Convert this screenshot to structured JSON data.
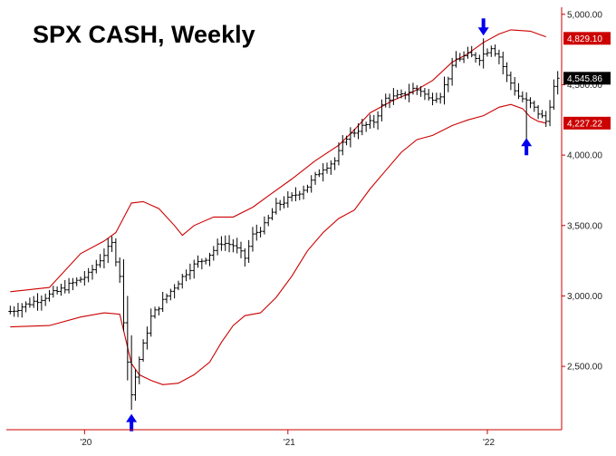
{
  "chart_data": {
    "type": "ohlc",
    "title": "SPX CASH, Weekly",
    "x_tick_labels": [
      "'20",
      "'21",
      "'22"
    ],
    "y_tick_labels": [
      "5,000.00",
      "4,500.00",
      "4,000.00",
      "3,500.00",
      "3,000.00",
      "2,500.00"
    ],
    "y_tick_values": [
      5000,
      4500,
      4000,
      3500,
      3000,
      2500
    ],
    "ylim": [
      2050,
      5050
    ],
    "tags": [
      {
        "label": "4,829.10",
        "value": 4829.1,
        "color": "#cc0000",
        "text_color": "#ffffff"
      },
      {
        "label": "4,545.86",
        "value": 4545.86,
        "color": "#000000",
        "text_color": "#ffffff"
      },
      {
        "label": "4,227.22",
        "value": 4227.22,
        "color": "#cc0000",
        "text_color": "#ffffff"
      }
    ],
    "colors": {
      "bars": "#000000",
      "bands": "#cc0000",
      "arrows": "#0000ee",
      "frame": "#cc0000"
    },
    "bar_anchors": {
      "start_week": 0,
      "end_week": 140,
      "points": [
        [
          0,
          2890
        ],
        [
          12,
          3030
        ],
        [
          20,
          3150
        ],
        [
          26,
          3370
        ],
        [
          28,
          3150
        ],
        [
          29,
          2800
        ],
        [
          31,
          2300
        ],
        [
          33,
          2550
        ],
        [
          36,
          2850
        ],
        [
          40,
          3000
        ],
        [
          46,
          3200
        ],
        [
          50,
          3270
        ],
        [
          54,
          3380
        ],
        [
          57,
          3360
        ],
        [
          60,
          3270
        ],
        [
          62,
          3430
        ],
        [
          65,
          3500
        ],
        [
          68,
          3640
        ],
        [
          72,
          3700
        ],
        [
          76,
          3780
        ],
        [
          80,
          3910
        ],
        [
          83,
          3960
        ],
        [
          86,
          4130
        ],
        [
          90,
          4200
        ],
        [
          93,
          4240
        ],
        [
          96,
          4400
        ],
        [
          100,
          4420
        ],
        [
          103,
          4470
        ],
        [
          105,
          4460
        ],
        [
          107,
          4400
        ],
        [
          110,
          4430
        ],
        [
          114,
          4680
        ],
        [
          117,
          4710
        ],
        [
          120,
          4690
        ],
        [
          123,
          4770
        ],
        [
          125,
          4700
        ],
        [
          127,
          4560
        ],
        [
          130,
          4420
        ],
        [
          133,
          4360
        ],
        [
          135,
          4300
        ],
        [
          137,
          4240
        ],
        [
          139,
          4480
        ],
        [
          140,
          4545
        ]
      ]
    },
    "upper_band": [
      [
        0,
        3030
      ],
      [
        10,
        3060
      ],
      [
        18,
        3300
      ],
      [
        24,
        3390
      ],
      [
        27,
        3450
      ],
      [
        31,
        3660
      ],
      [
        34,
        3670
      ],
      [
        38,
        3620
      ],
      [
        42,
        3500
      ],
      [
        44,
        3430
      ],
      [
        47,
        3500
      ],
      [
        52,
        3560
      ],
      [
        57,
        3560
      ],
      [
        62,
        3630
      ],
      [
        66,
        3710
      ],
      [
        72,
        3830
      ],
      [
        78,
        3960
      ],
      [
        84,
        4070
      ],
      [
        88,
        4180
      ],
      [
        92,
        4300
      ],
      [
        98,
        4390
      ],
      [
        103,
        4450
      ],
      [
        108,
        4530
      ],
      [
        113,
        4660
      ],
      [
        117,
        4720
      ],
      [
        121,
        4800
      ],
      [
        125,
        4860
      ],
      [
        128,
        4890
      ],
      [
        133,
        4880
      ],
      [
        135,
        4860
      ],
      [
        137,
        4840
      ]
    ],
    "lower_band": [
      [
        0,
        2780
      ],
      [
        10,
        2790
      ],
      [
        18,
        2850
      ],
      [
        24,
        2880
      ],
      [
        28,
        2870
      ],
      [
        31,
        2520
      ],
      [
        33,
        2440
      ],
      [
        36,
        2400
      ],
      [
        39,
        2370
      ],
      [
        43,
        2380
      ],
      [
        47,
        2440
      ],
      [
        51,
        2530
      ],
      [
        54,
        2670
      ],
      [
        57,
        2790
      ],
      [
        60,
        2860
      ],
      [
        64,
        2880
      ],
      [
        68,
        2990
      ],
      [
        72,
        3140
      ],
      [
        76,
        3320
      ],
      [
        80,
        3450
      ],
      [
        84,
        3550
      ],
      [
        88,
        3610
      ],
      [
        92,
        3760
      ],
      [
        96,
        3890
      ],
      [
        100,
        4020
      ],
      [
        104,
        4110
      ],
      [
        108,
        4140
      ],
      [
        113,
        4210
      ],
      [
        117,
        4250
      ],
      [
        121,
        4280
      ],
      [
        125,
        4340
      ],
      [
        128,
        4360
      ],
      [
        131,
        4330
      ],
      [
        133,
        4270
      ],
      [
        135,
        4240
      ],
      [
        137,
        4227
      ]
    ],
    "arrows": [
      {
        "week": 31,
        "direction": "up",
        "value": 2110
      },
      {
        "week": 121,
        "direction": "down",
        "value": 4900
      },
      {
        "week": 132,
        "direction": "up",
        "value": 4070
      }
    ],
    "x_ticks": [
      {
        "label": "'20",
        "week": 19
      },
      {
        "label": "'21",
        "week": 71
      },
      {
        "label": "'22",
        "week": 122
      }
    ]
  }
}
